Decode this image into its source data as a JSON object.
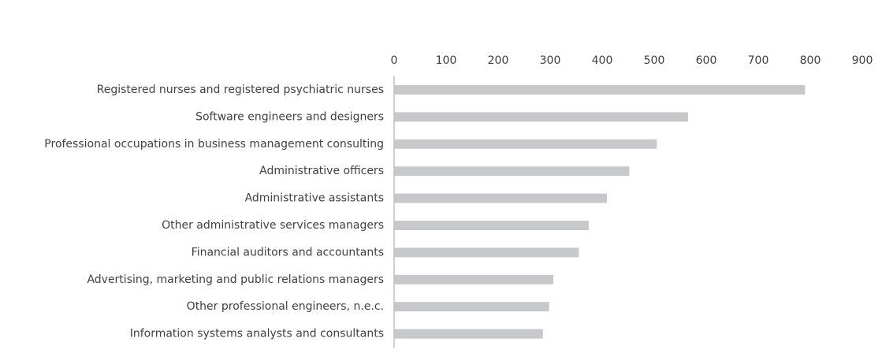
{
  "chart_data": {
    "type": "bar",
    "orientation": "horizontal",
    "title": "",
    "xlabel": "",
    "ylabel": "",
    "xlim": [
      0,
      900
    ],
    "ticks": [
      0,
      100,
      200,
      300,
      400,
      500,
      600,
      700,
      800,
      900
    ],
    "tick_labels": [
      "0",
      "100",
      "200",
      "300",
      "400",
      "500",
      "600",
      "700",
      "800",
      "900"
    ],
    "x_axis_position": "top",
    "grid": false,
    "legend": "none",
    "bar_color": "#c6c8ca",
    "axis_color": "#bfbfbf",
    "text_color": "#404040",
    "categories": [
      "Registered nurses and registered psychiatric nurses",
      "Software engineers and designers",
      "Professional occupations in business management consulting",
      "Administrative officers",
      "Administrative assistants",
      "Other administrative services managers",
      "Financial auditors and accountants",
      "Advertising, marketing and public relations managers",
      "Other professional engineers, n.e.c.",
      "Information systems analysts and consultants"
    ],
    "values": [
      790,
      565,
      505,
      452,
      409,
      374,
      355,
      306,
      298,
      286
    ]
  }
}
